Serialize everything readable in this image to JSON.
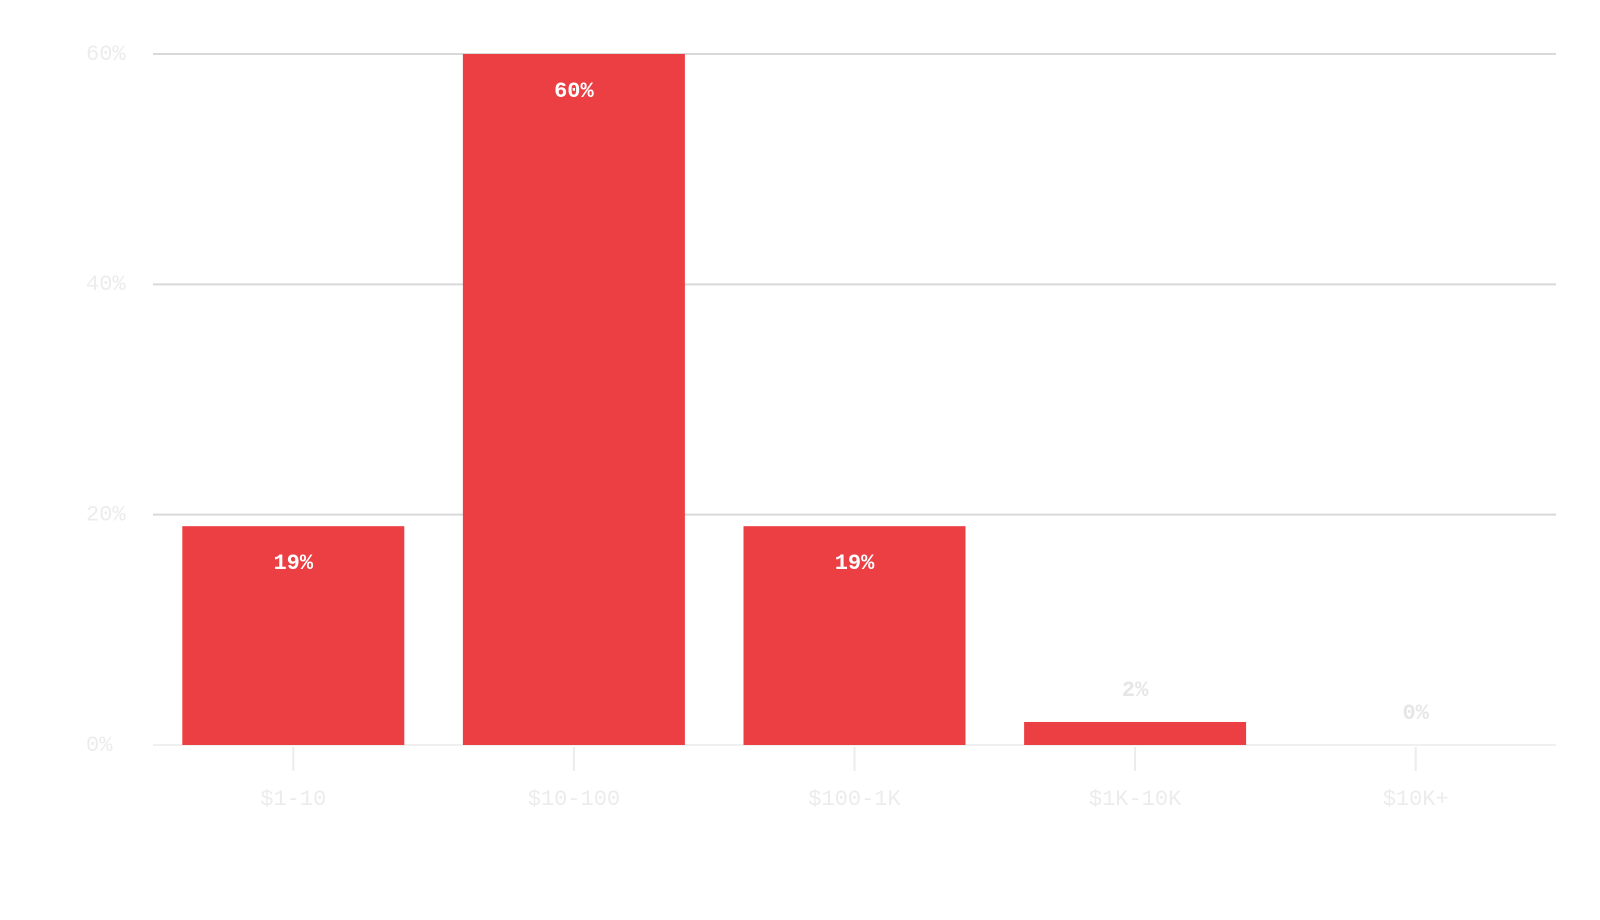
{
  "chart_data": {
    "type": "bar",
    "categories": [
      "$1-10",
      "$10-100",
      "$100-1K",
      "$1K-10K",
      "$10K+"
    ],
    "values": [
      19,
      60,
      19,
      2,
      0
    ],
    "value_labels": [
      "19%",
      "60%",
      "19%",
      "2%",
      "0%"
    ],
    "color": "#eb3f44",
    "ylim": [
      0,
      60
    ],
    "yticks": [
      {
        "value": 0,
        "label": "0%"
      },
      {
        "value": 20,
        "label": "20%"
      },
      {
        "value": 40,
        "label": "40%"
      },
      {
        "value": 60,
        "label": "60%"
      }
    ],
    "grid": true
  }
}
